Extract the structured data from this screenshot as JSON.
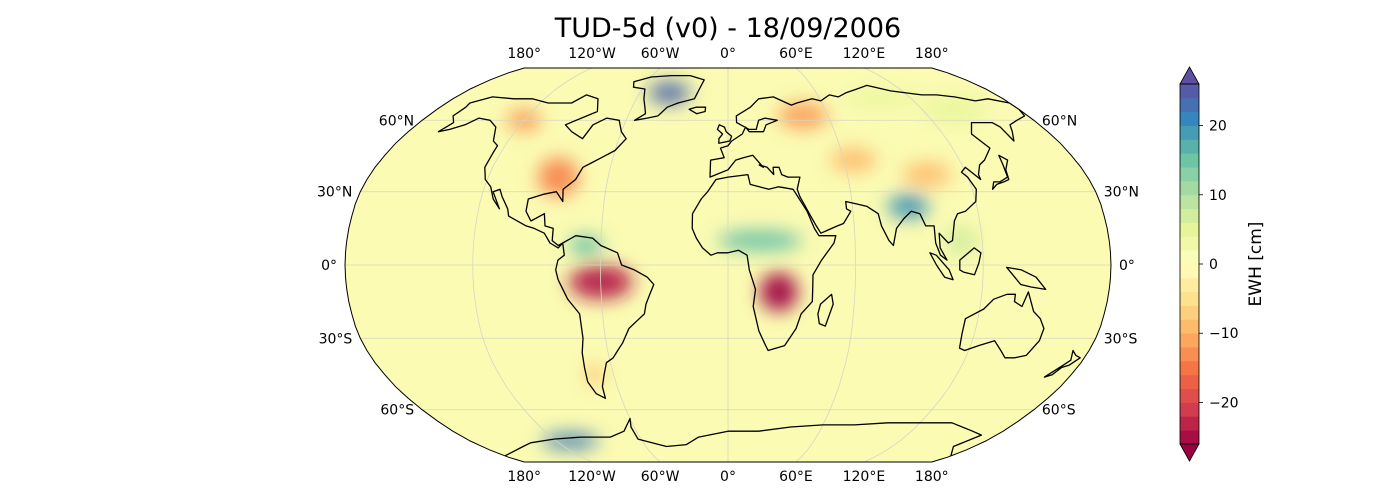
{
  "title": "TUD-5d (v0) - 18/09/2006",
  "map": {
    "projection": "Robinson",
    "central_longitude": 0,
    "lon_ticks": [
      {
        "lon": -180,
        "label": "180°"
      },
      {
        "lon": -120,
        "label": "120°W"
      },
      {
        "lon": -60,
        "label": "60°W"
      },
      {
        "lon": 0,
        "label": "0°"
      },
      {
        "lon": 60,
        "label": "60°E"
      },
      {
        "lon": 120,
        "label": "120°E"
      },
      {
        "lon": 180,
        "label": "180°"
      }
    ],
    "lat_ticks": [
      {
        "lat": 60,
        "label": "60°N"
      },
      {
        "lat": 30,
        "label": "30°N"
      },
      {
        "lat": 0,
        "label": "0°"
      },
      {
        "lat": -30,
        "label": "30°S"
      },
      {
        "lat": -60,
        "label": "60°S"
      }
    ],
    "colors": {
      "ocean_neutral": "#fbfbb3",
      "coastline": "#000000",
      "gridline": "#d6d6c2"
    },
    "anomalies": [
      {
        "name": "amazon",
        "lon": -60,
        "lat": -7,
        "rx": 15,
        "ry": 7,
        "value": -24
      },
      {
        "name": "south-central-africa",
        "lon": 24,
        "lat": -11,
        "rx": 9,
        "ry": 8,
        "value": -26
      },
      {
        "name": "sahel-band",
        "lon": 15,
        "lat": 10,
        "rx": 20,
        "ry": 4,
        "value": 16
      },
      {
        "name": "bangladesh-india",
        "lon": 87,
        "lat": 24,
        "rx": 10,
        "ry": 5,
        "value": 20
      },
      {
        "name": "hudson-greenland",
        "lon": -40,
        "lat": 73,
        "rx": 14,
        "ry": 6,
        "value": 24
      },
      {
        "name": "caribbean-venezuela",
        "lon": -67,
        "lat": 8,
        "rx": 8,
        "ry": 4,
        "value": 16
      },
      {
        "name": "northern-canada-west",
        "lon": -120,
        "lat": 60,
        "rx": 10,
        "ry": 5,
        "value": -12
      },
      {
        "name": "eastern-us",
        "lon": -85,
        "lat": 36,
        "rx": 10,
        "ry": 8,
        "value": -14
      },
      {
        "name": "russia-west",
        "lon": 45,
        "lat": 62,
        "rx": 15,
        "ry": 6,
        "value": -12
      },
      {
        "name": "central-asia",
        "lon": 65,
        "lat": 43,
        "rx": 12,
        "ry": 5,
        "value": -9
      },
      {
        "name": "tibet-china",
        "lon": 100,
        "lat": 37,
        "rx": 12,
        "ry": 5,
        "value": -9
      },
      {
        "name": "west-antarctica",
        "lon": -110,
        "lat": -75,
        "rx": 20,
        "ry": 4,
        "value": 22
      },
      {
        "name": "patagonia",
        "lon": -70,
        "lat": -45,
        "rx": 4,
        "ry": 4,
        "value": -10
      },
      {
        "name": "siberia-east",
        "lon": 140,
        "lat": 65,
        "rx": 20,
        "ry": 6,
        "value": 5
      },
      {
        "name": "se-asia-green",
        "lon": 110,
        "lat": 10,
        "rx": 8,
        "ry": 6,
        "value": 7
      },
      {
        "name": "siberia-north",
        "lon": 100,
        "lat": 70,
        "rx": 25,
        "ry": 4,
        "value": 5
      }
    ]
  },
  "colorbar": {
    "label": "EWH [cm]",
    "vmin": -26,
    "vmax": 26,
    "levels": 26,
    "ticks": [
      {
        "value": 20,
        "label": "20"
      },
      {
        "value": 10,
        "label": "10"
      },
      {
        "value": 0,
        "label": "0"
      },
      {
        "value": -10,
        "label": "−10"
      },
      {
        "value": -20,
        "label": "−20"
      }
    ],
    "colormap": [
      "#9e0142",
      "#d53e4f",
      "#f46d43",
      "#fdae61",
      "#fee08b",
      "#ffffbf",
      "#e6f598",
      "#abdda4",
      "#66c2a5",
      "#3288bd",
      "#5e4fa2"
    ]
  }
}
